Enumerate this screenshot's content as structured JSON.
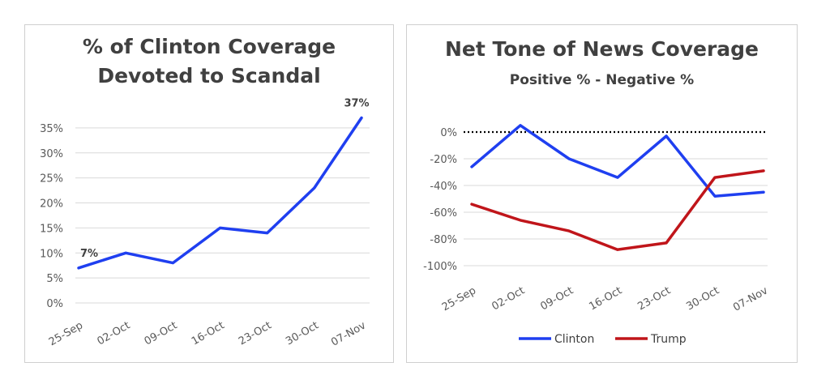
{
  "chart_data": [
    {
      "type": "line",
      "title_line1": "% of Clinton Coverage",
      "title_line2": "Devoted to Scandal",
      "categories": [
        "25-Sep",
        "02-Oct",
        "09-Oct",
        "16-Oct",
        "23-Oct",
        "30-Oct",
        "07-Nov"
      ],
      "series": [
        {
          "name": "",
          "color": "#1f3ff0",
          "values": [
            7,
            10,
            8,
            15,
            14,
            23,
            37
          ]
        }
      ],
      "data_labels": [
        {
          "index": 0,
          "text": "7%"
        },
        {
          "index": 6,
          "text": "37%"
        }
      ],
      "y_ticks": [
        "0%",
        "5%",
        "10%",
        "15%",
        "20%",
        "25%",
        "30%",
        "35%"
      ],
      "y_tick_values": [
        0,
        5,
        10,
        15,
        20,
        25,
        30,
        35
      ],
      "ylim": [
        0,
        40
      ],
      "grid": true,
      "legend": "none"
    },
    {
      "type": "line",
      "title": "Net Tone of News Coverage",
      "subtitle": "Positive % - Negative %",
      "categories": [
        "25-Sep",
        "02-Oct",
        "09-Oct",
        "16-Oct",
        "23-Oct",
        "30-Oct",
        "07-Nov"
      ],
      "series": [
        {
          "name": "Clinton",
          "color": "#1f3ff0",
          "values": [
            -26,
            5,
            -20,
            -34,
            -3,
            -48,
            -45
          ]
        },
        {
          "name": "Trump",
          "color": "#c0151a",
          "values": [
            -54,
            -66,
            -74,
            -88,
            -83,
            -34,
            -29
          ]
        }
      ],
      "y_ticks": [
        "0%",
        "-20%",
        "-40%",
        "-60%",
        "-80%",
        "-100%"
      ],
      "y_tick_values": [
        0,
        -20,
        -40,
        -60,
        -80,
        -100
      ],
      "ylim": [
        -100,
        0
      ],
      "zero_line": "dotted",
      "grid": true,
      "legend": "bottom"
    }
  ]
}
